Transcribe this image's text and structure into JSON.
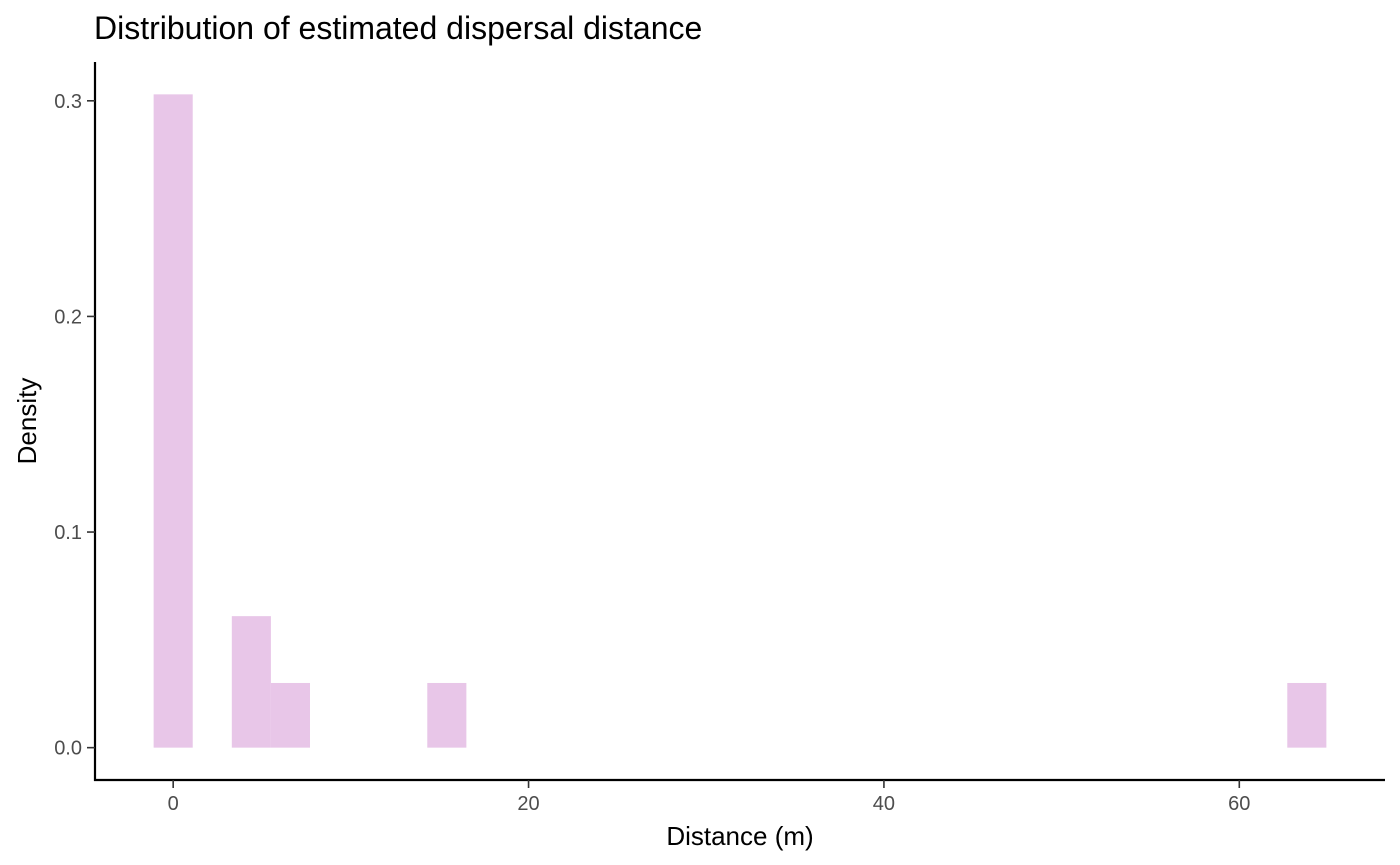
{
  "chart_data": {
    "type": "histogram",
    "title": "Distribution of estimated dispersal distance",
    "xlabel": "Distance (m)",
    "ylabel": "Density",
    "bin_width": 2.2,
    "bins": [
      {
        "x_min": -1.1,
        "x_max": 1.1,
        "density": 0.303
      },
      {
        "x_min": 3.3,
        "x_max": 5.5,
        "density": 0.061
      },
      {
        "x_min": 5.5,
        "x_max": 7.7,
        "density": 0.03
      },
      {
        "x_min": 14.3,
        "x_max": 16.5,
        "density": 0.03
      },
      {
        "x_min": 62.7,
        "x_max": 64.9,
        "density": 0.03
      }
    ],
    "xlim": [
      -4.4,
      68.2
    ],
    "ylim": [
      -0.015,
      0.318
    ],
    "x_ticks": [
      0,
      20,
      40,
      60
    ],
    "x_tick_labels": [
      "0",
      "20",
      "40",
      "60"
    ],
    "y_ticks": [
      0.0,
      0.1,
      0.2,
      0.3
    ],
    "y_tick_labels": [
      "0.0",
      "0.1",
      "0.2",
      "0.3"
    ],
    "bar_color": "#e8c6e8",
    "grid": false,
    "legend": "none"
  }
}
